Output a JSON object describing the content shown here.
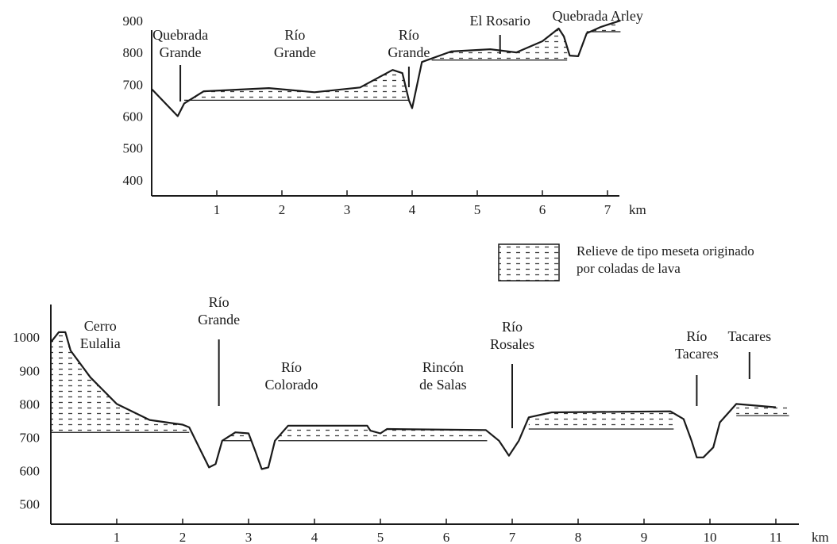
{
  "colors": {
    "ink": "#1a1a1a",
    "hatch": "#3a3a3a",
    "background": "#ffffff"
  },
  "legend": {
    "line1": "Relieve de tipo meseta originado",
    "line2": "por coladas de lava"
  },
  "chart_data": [
    {
      "type": "area",
      "title": "",
      "xlabel": "km",
      "ylabel": "",
      "xlim": [
        0,
        7.2
      ],
      "ylim": [
        350,
        920
      ],
      "x_ticks": [
        "1",
        "2",
        "3",
        "4",
        "5",
        "6",
        "7"
      ],
      "y_ticks": [
        "900",
        "800",
        "700",
        "600",
        "500",
        "400"
      ],
      "x_unit": "km",
      "profile": [
        [
          0,
          685
        ],
        [
          0.4,
          600
        ],
        [
          0.5,
          640
        ],
        [
          0.8,
          678
        ],
        [
          1.8,
          688
        ],
        [
          2.5,
          675
        ],
        [
          3.2,
          690
        ],
        [
          3.7,
          745
        ],
        [
          3.85,
          735
        ],
        [
          3.95,
          650
        ],
        [
          4.0,
          625
        ],
        [
          4.15,
          770
        ],
        [
          4.6,
          803
        ],
        [
          5.2,
          810
        ],
        [
          5.6,
          800
        ],
        [
          6.0,
          835
        ],
        [
          6.25,
          875
        ],
        [
          6.33,
          850
        ],
        [
          6.42,
          790
        ],
        [
          6.55,
          788
        ],
        [
          6.68,
          860
        ],
        [
          6.9,
          880
        ],
        [
          7.2,
          900
        ]
      ],
      "plateaus": [
        {
          "x": [
            0.5,
            3.95
          ],
          "base": 650
        },
        {
          "x": [
            4.3,
            6.38
          ],
          "base": 776
        },
        {
          "x": [
            6.68,
            7.2
          ],
          "base": 865
        }
      ],
      "annotations": [
        {
          "lines": [
            "Quebrada",
            "Grande"
          ],
          "x": 0.44
        },
        {
          "lines": [
            "Río",
            "Grande"
          ],
          "x": 2.2
        },
        {
          "lines": [
            "Río",
            "Grande"
          ],
          "x": 3.95
        },
        {
          "lines": [
            "El Rosario"
          ],
          "x": 5.35
        },
        {
          "lines": [
            "Quebrada Arley"
          ],
          "x": 6.85
        }
      ]
    },
    {
      "type": "area",
      "title": "",
      "xlabel": "km",
      "ylabel": "",
      "xlim": [
        0,
        11.2
      ],
      "ylim": [
        440,
        1050
      ],
      "x_ticks": [
        "1",
        "2",
        "3",
        "4",
        "5",
        "6",
        "7",
        "8",
        "9",
        "10",
        "11"
      ],
      "y_ticks": [
        "1000",
        "900",
        "800",
        "700",
        "600",
        "500"
      ],
      "x_unit": "km",
      "profile": [
        [
          0,
          985
        ],
        [
          0.12,
          1015
        ],
        [
          0.22,
          1015
        ],
        [
          0.3,
          960
        ],
        [
          0.6,
          880
        ],
        [
          1.0,
          800
        ],
        [
          1.5,
          752
        ],
        [
          2.0,
          738
        ],
        [
          2.1,
          730
        ],
        [
          2.3,
          650
        ],
        [
          2.4,
          610
        ],
        [
          2.5,
          620
        ],
        [
          2.6,
          690
        ],
        [
          2.8,
          715
        ],
        [
          3.0,
          712
        ],
        [
          3.1,
          660
        ],
        [
          3.2,
          605
        ],
        [
          3.3,
          610
        ],
        [
          3.4,
          690
        ],
        [
          3.6,
          735
        ],
        [
          4.8,
          735
        ],
        [
          4.85,
          720
        ],
        [
          5.0,
          712
        ],
        [
          5.1,
          725
        ],
        [
          6.6,
          722
        ],
        [
          6.8,
          690
        ],
        [
          6.95,
          645
        ],
        [
          7.1,
          690
        ],
        [
          7.25,
          760
        ],
        [
          7.6,
          775
        ],
        [
          9.4,
          778
        ],
        [
          9.6,
          755
        ],
        [
          9.72,
          690
        ],
        [
          9.8,
          640
        ],
        [
          9.9,
          640
        ],
        [
          10.05,
          670
        ],
        [
          10.15,
          745
        ],
        [
          10.4,
          800
        ],
        [
          11.0,
          790
        ],
        [
          11.7,
          810
        ]
      ],
      "plateaus": [
        {
          "x": [
            0,
            2.1
          ],
          "base": 715
        },
        {
          "x": [
            2.62,
            3.05
          ],
          "base": 690
        },
        {
          "x": [
            3.45,
            6.62
          ],
          "base": 690
        },
        {
          "x": [
            7.25,
            9.45
          ],
          "base": 725
        },
        {
          "x": [
            10.4,
            11.7
          ],
          "base": 765
        }
      ],
      "annotations": [
        {
          "lines": [
            "Cerro",
            "Eulalia"
          ],
          "x": 0.75
        },
        {
          "lines": [
            "Río",
            "Grande"
          ],
          "x": 2.55
        },
        {
          "lines": [
            "Río",
            "Colorado"
          ],
          "x": 3.65
        },
        {
          "lines": [
            "Rincón",
            "de Salas"
          ],
          "x": 5.95
        },
        {
          "lines": [
            "Río",
            "Rosales"
          ],
          "x": 7.0
        },
        {
          "lines": [
            "Río",
            "Tacares"
          ],
          "x": 9.8
        },
        {
          "lines": [
            "Tacares"
          ],
          "x": 10.6
        }
      ]
    }
  ]
}
